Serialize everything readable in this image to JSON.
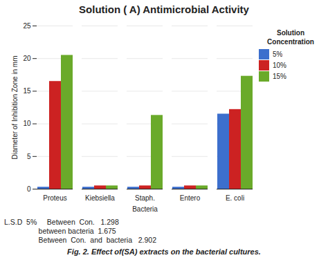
{
  "chart_data": {
    "type": "bar",
    "title": "Solution ( A)  Antimicrobial Activity",
    "xlabel": "Bacteria",
    "ylabel": "Diameter of Inhibition Zone in mm",
    "categories": [
      "Proteus",
      "Kiebsiella",
      "Staph.",
      "Entero",
      "E. coli"
    ],
    "series": [
      {
        "name": "5%",
        "color": "#3c6fcd",
        "values": [
          0.3,
          0.3,
          0.3,
          0.3,
          11.5
        ]
      },
      {
        "name": "10%",
        "color": "#cc2222",
        "values": [
          16.5,
          0.5,
          0.5,
          0.5,
          12.2
        ]
      },
      {
        "name": "15%",
        "color": "#6aaa2a",
        "values": [
          20.5,
          0.5,
          11.3,
          0.5,
          17.3
        ]
      }
    ],
    "ylim": [
      0,
      25
    ],
    "yticks": [
      0,
      5,
      10,
      15,
      20,
      25
    ],
    "grid": true,
    "legend": "upper right",
    "legend_title": "Solution\nConcentration",
    "annotations": [
      "L.S.D  5%     Between  Con.   1.298",
      "                 between bacteria  1.675",
      "                 Between  Con.  and  bacteria   2.902"
    ],
    "caption": "Fig. 2. Effect of(SA) extracts on the bacterial cultures."
  }
}
